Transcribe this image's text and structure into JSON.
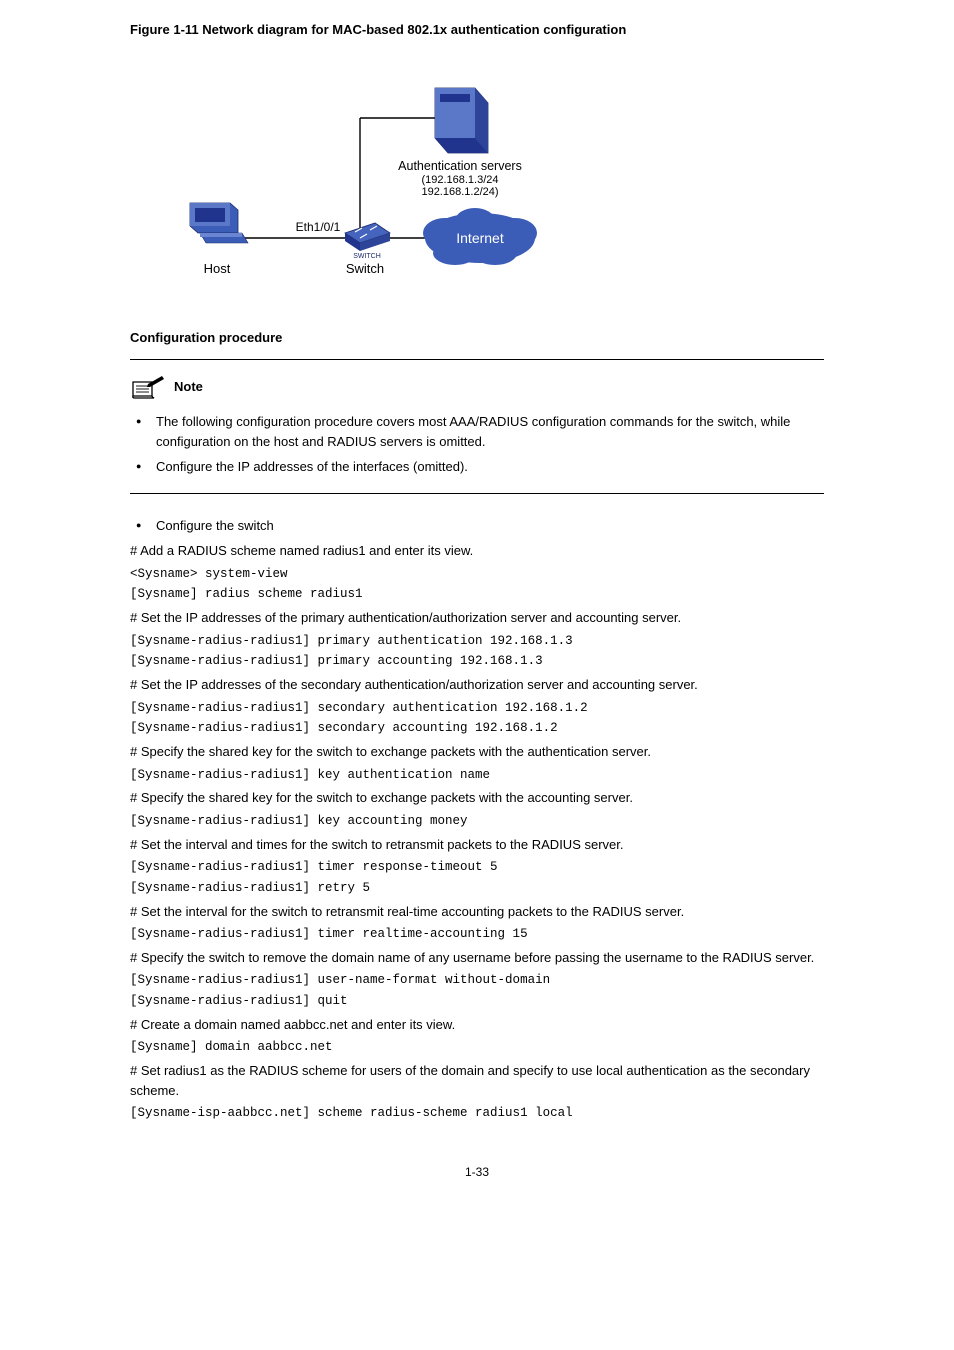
{
  "figure_caption": "Figure 1-11 Network diagram for MAC-based 802.1x authentication configuration",
  "diagram": {
    "host_label": "Host",
    "switch_label": "Switch",
    "port_label": "Eth1/0/1",
    "servers_label": "Authentication servers",
    "servers_ips": "(192.168.1.3/24\n192.168.1.2/24)",
    "cloud_label": "Internet",
    "colors": {
      "device_blue_dark": "#20348e",
      "device_blue_light": "#5b77c7",
      "line": "#000000",
      "cloud_fill": "#3b5db8",
      "cloud_text": "#ffffff",
      "text": "#000000"
    },
    "fonts": {
      "label_size": 13,
      "small_size": 11
    }
  },
  "config_heading": "Configuration procedure",
  "note": {
    "label": "Note",
    "items": [
      "The following configuration procedure covers most AAA/RADIUS configuration commands for the switch, while configuration on the host and RADIUS servers is omitted.",
      "Configure the IP addresses of the interfaces (omitted)."
    ]
  },
  "steps": {
    "lead_bullet": "Configure the switch",
    "items": [
      {
        "text": "# Add a RADIUS scheme named radius1 and enter its view.",
        "cmd": "<Sysname> system-view\n[Sysname] radius scheme radius1"
      },
      {
        "text": "# Set the IP addresses of the primary authentication/authorization server and accounting server.",
        "cmd": "[Sysname-radius-radius1] primary authentication 192.168.1.3\n[Sysname-radius-radius1] primary accounting 192.168.1.3"
      },
      {
        "text": "# Set the IP addresses of the secondary authentication/authorization server and accounting server.",
        "cmd": "[Sysname-radius-radius1] secondary authentication 192.168.1.2\n[Sysname-radius-radius1] secondary accounting 192.168.1.2"
      },
      {
        "text": "# Specify the shared key for the switch to exchange packets with the authentication server.",
        "cmd": "[Sysname-radius-radius1] key authentication name"
      },
      {
        "text": "# Specify the shared key for the switch to exchange packets with the accounting server.",
        "cmd": "[Sysname-radius-radius1] key accounting money"
      },
      {
        "text": "# Set the interval and times for the switch to retransmit packets to the RADIUS server.",
        "cmd": "[Sysname-radius-radius1] timer response-timeout 5\n[Sysname-radius-radius1] retry 5"
      },
      {
        "text": "# Set the interval for the switch to retransmit real-time accounting packets to the RADIUS server.",
        "cmd": "[Sysname-radius-radius1] timer realtime-accounting 15"
      },
      {
        "text": "# Specify the switch to remove the domain name of any username before passing the username to the RADIUS server.",
        "cmd": "[Sysname-radius-radius1] user-name-format without-domain\n[Sysname-radius-radius1] quit"
      },
      {
        "text": "# Create a domain named aabbcc.net and enter its view.",
        "cmd": "[Sysname] domain aabbcc.net"
      },
      {
        "text": "# Set radius1 as the RADIUS scheme for users of the domain and specify to use local authentication as the secondary scheme.",
        "cmd": "[Sysname-isp-aabbcc.net] scheme radius-scheme radius1 local"
      }
    ]
  },
  "page_number": "1-33"
}
